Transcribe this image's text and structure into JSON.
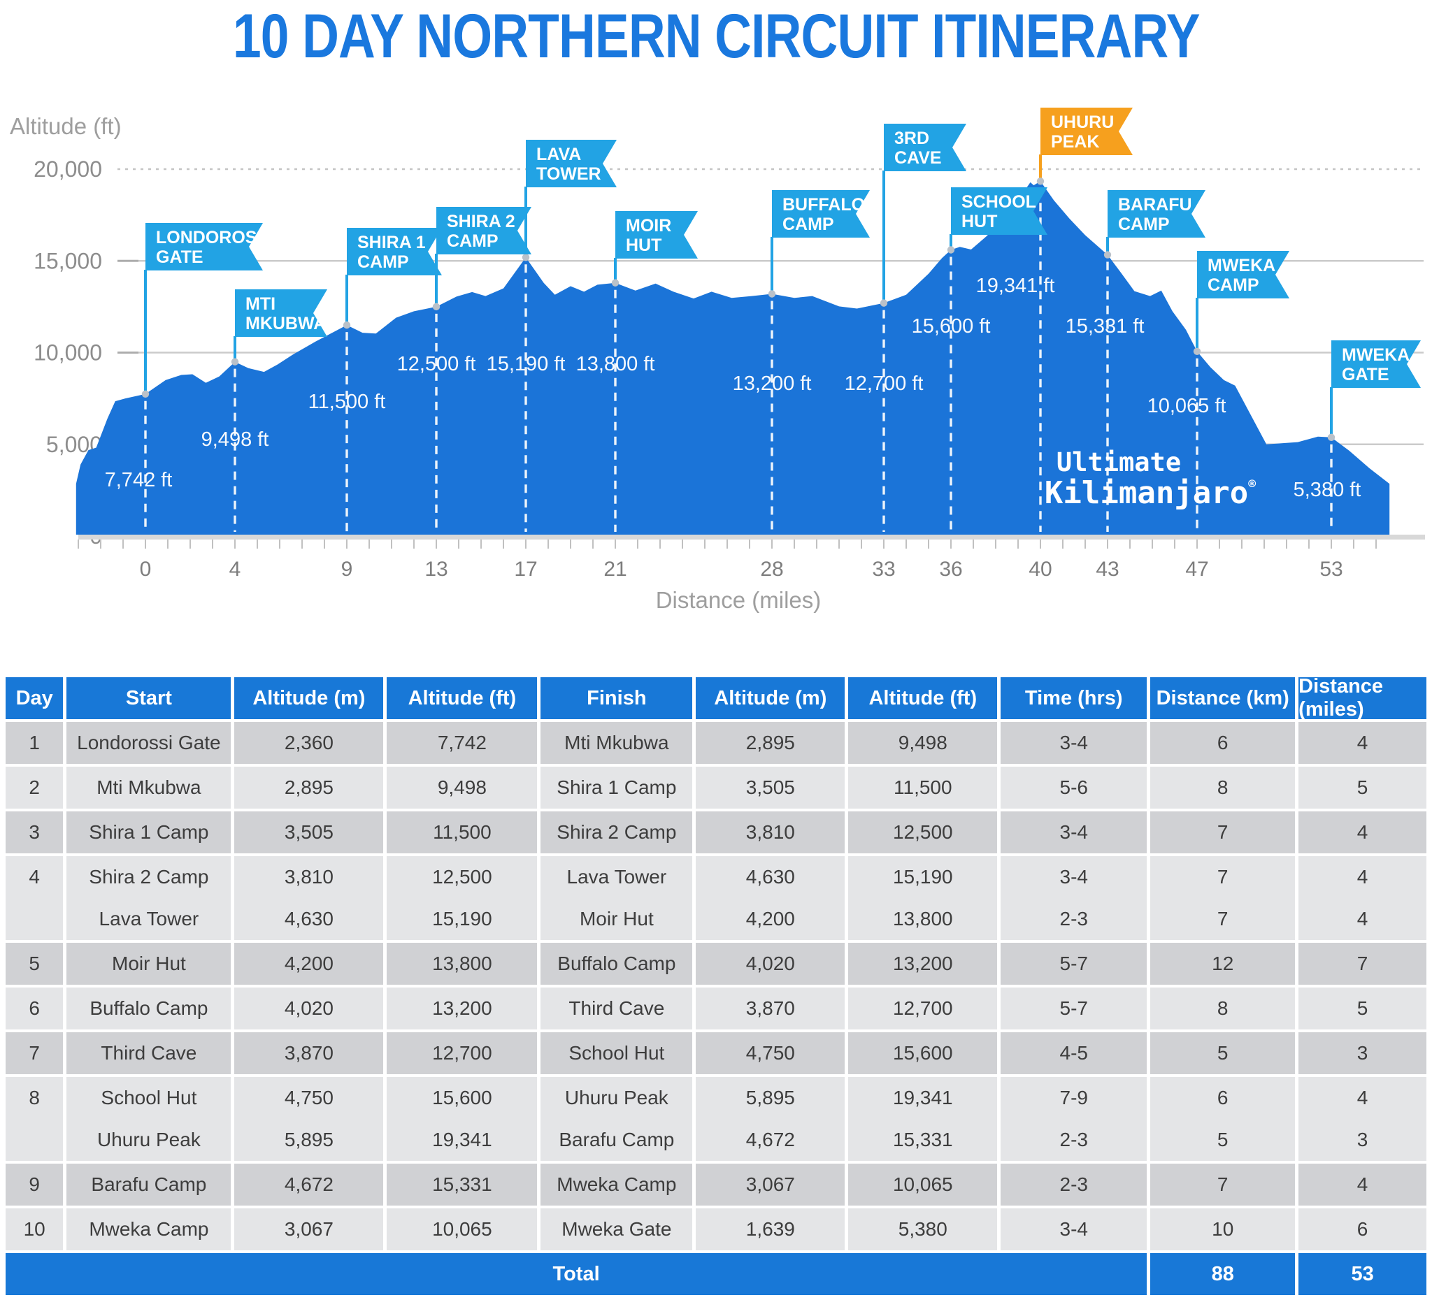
{
  "title": "10 DAY NORTHERN CIRCUIT ITINERARY",
  "colors": {
    "accent_blue": "#1878D7",
    "area_blue": "#1B74D8",
    "flag_blue": "#22A3E4",
    "flag_orange": "#F6A01E",
    "row_dark": "#D0D1D4",
    "row_light": "#E4E5E7",
    "grid_line": "#CBCBCB",
    "axis_text": "#8D8D8D",
    "white": "#FFFFFF"
  },
  "logo": {
    "line1": "Ultimate",
    "line2": "Kilimanjaro",
    "reg": "®"
  },
  "chart_data": {
    "type": "area",
    "title": "10 DAY NORTHERN CIRCUIT ITINERARY",
    "xlabel": "Distance (miles)",
    "ylabel": "Altitude (ft)",
    "xlim": [
      -3.1,
      55.7
    ],
    "ylim": [
      0,
      20000
    ],
    "grid": true,
    "x_ticks": [
      0,
      4,
      9,
      13,
      17,
      21,
      28,
      33,
      36,
      40,
      43,
      47,
      53
    ],
    "y_ticks": [
      0,
      5000,
      10000,
      15000,
      20000
    ],
    "y_tick_labels": [
      "0",
      "5,000",
      "10,000",
      "15,000",
      "20,000"
    ],
    "camps": [
      {
        "name": "Londorossi Gate",
        "flag_lines": [
          "LONDOROSSI",
          "GATE"
        ],
        "mile": 0,
        "ft": 7742,
        "label": "7,742 ft",
        "color": "blue",
        "flag_top": 315,
        "flag_w": 168,
        "label_x": 198,
        "label_y": 692
      },
      {
        "name": "Mti Mkubwa",
        "flag_lines": [
          "MTI",
          "MKUBWA"
        ],
        "mile": 4,
        "ft": 9498,
        "label": "9,498 ft",
        "color": "blue",
        "flag_top": 410,
        "flag_w": 132,
        "label_x": 336,
        "label_y": 634
      },
      {
        "name": "Shira 1 Camp",
        "flag_lines": [
          "SHIRA 1",
          "CAMP"
        ],
        "mile": 9,
        "ft": 11500,
        "label": "11,500 ft",
        "color": "blue",
        "flag_top": 322,
        "flag_w": 136,
        "label_x": 496,
        "label_y": 580
      },
      {
        "name": "Shira 2 Camp",
        "flag_lines": [
          "SHIRA 2",
          "CAMP"
        ],
        "mile": 13,
        "ft": 12500,
        "label": "12,500 ft",
        "color": "blue",
        "flag_top": 292,
        "flag_w": 136,
        "label_x": 624,
        "label_y": 526
      },
      {
        "name": "Lava Tower",
        "flag_lines": [
          "LAVA",
          "TOWER"
        ],
        "mile": 17,
        "ft": 15190,
        "label": "15,190 ft",
        "color": "blue",
        "flag_top": 196,
        "flag_w": 130,
        "label_x": 752,
        "label_y": 526
      },
      {
        "name": "Moir Hut",
        "flag_lines": [
          "MOIR",
          "HUT"
        ],
        "mile": 21,
        "ft": 13800,
        "label": "13,800 ft",
        "color": "blue",
        "flag_top": 298,
        "flag_w": 118,
        "label_x": 880,
        "label_y": 526
      },
      {
        "name": "Buffalo Camp",
        "flag_lines": [
          "BUFFALO",
          "CAMP"
        ],
        "mile": 28,
        "ft": 13200,
        "label": "13,200 ft",
        "color": "blue",
        "flag_top": 268,
        "flag_w": 140,
        "label_x": 1104,
        "label_y": 554
      },
      {
        "name": "3rd Cave",
        "flag_lines": [
          "3RD",
          "CAVE"
        ],
        "mile": 33,
        "ft": 12700,
        "label": "12,700 ft",
        "color": "blue",
        "flag_top": 173,
        "flag_w": 118,
        "label_x": 1264,
        "label_y": 554
      },
      {
        "name": "School Hut",
        "flag_lines": [
          "SCHOOL",
          "HUT"
        ],
        "mile": 36,
        "ft": 15600,
        "label": "15,600 ft",
        "color": "blue",
        "flag_top": 264,
        "flag_w": 138,
        "label_x": 1360,
        "label_y": 472
      },
      {
        "name": "Uhuru Peak",
        "flag_lines": [
          "UHURU",
          "PEAK"
        ],
        "mile": 40,
        "ft": 19341,
        "label": "19,341 ft",
        "color": "orange",
        "flag_top": 150,
        "flag_w": 132,
        "label_x": 1452,
        "label_y": 414
      },
      {
        "name": "Barafu Camp",
        "flag_lines": [
          "BARAFU",
          "CAMP"
        ],
        "mile": 43,
        "ft": 15331,
        "label": "15,331 ft",
        "color": "blue",
        "flag_top": 268,
        "flag_w": 140,
        "label_x": 1580,
        "label_y": 472
      },
      {
        "name": "Mweka Camp",
        "flag_lines": [
          "MWEKA",
          "CAMP"
        ],
        "mile": 47,
        "ft": 10065,
        "label": "10,065 ft",
        "color": "blue",
        "flag_top": 355,
        "flag_w": 132,
        "label_x": 1697,
        "label_y": 586
      },
      {
        "name": "Mweka Gate",
        "flag_lines": [
          "MWEKA",
          "GATE"
        ],
        "mile": 53,
        "ft": 5380,
        "label": "5,380 ft",
        "color": "blue",
        "flag_top": 483,
        "flag_w": 128,
        "label_x": 1898,
        "label_y": 706
      }
    ],
    "profile": [
      [
        -3.1,
        2850
      ],
      [
        -2.9,
        3900
      ],
      [
        -2.55,
        4680
      ],
      [
        -2.2,
        4820
      ],
      [
        -1.7,
        6400
      ],
      [
        -1.35,
        7350
      ],
      [
        -0.9,
        7500
      ],
      [
        0,
        7742
      ],
      [
        0.9,
        8500
      ],
      [
        1.6,
        8780
      ],
      [
        2.1,
        8820
      ],
      [
        2.7,
        8350
      ],
      [
        3.3,
        8700
      ],
      [
        4,
        9498
      ],
      [
        4.6,
        9150
      ],
      [
        5.3,
        8950
      ],
      [
        5.9,
        9350
      ],
      [
        6.6,
        9900
      ],
      [
        7.6,
        10600
      ],
      [
        9,
        11500
      ],
      [
        9.7,
        11080
      ],
      [
        10.3,
        11040
      ],
      [
        11.2,
        11900
      ],
      [
        12,
        12250
      ],
      [
        13,
        12500
      ],
      [
        13.9,
        13050
      ],
      [
        14.6,
        13300
      ],
      [
        15.2,
        13080
      ],
      [
        16,
        13500
      ],
      [
        17,
        15190
      ],
      [
        17.8,
        13800
      ],
      [
        18.3,
        13150
      ],
      [
        19,
        13620
      ],
      [
        19.6,
        13320
      ],
      [
        20.2,
        13700
      ],
      [
        21,
        13800
      ],
      [
        21.9,
        13380
      ],
      [
        22.8,
        13760
      ],
      [
        23.6,
        13320
      ],
      [
        24.5,
        12950
      ],
      [
        25.3,
        13320
      ],
      [
        26.2,
        12980
      ],
      [
        27.1,
        13080
      ],
      [
        28,
        13200
      ],
      [
        29,
        12980
      ],
      [
        29.8,
        13080
      ],
      [
        31,
        12520
      ],
      [
        31.8,
        12400
      ],
      [
        33,
        12700
      ],
      [
        34,
        13150
      ],
      [
        35,
        14300
      ],
      [
        35.6,
        15150
      ],
      [
        36,
        15600
      ],
      [
        36.4,
        15760
      ],
      [
        36.9,
        15620
      ],
      [
        37.6,
        16350
      ],
      [
        38.6,
        17650
      ],
      [
        39.3,
        18850
      ],
      [
        39.55,
        19280
      ],
      [
        39.7,
        19120
      ],
      [
        40,
        19341
      ],
      [
        40.6,
        18300
      ],
      [
        41.3,
        17300
      ],
      [
        42,
        16400
      ],
      [
        43,
        15331
      ],
      [
        43.6,
        14350
      ],
      [
        44.2,
        13350
      ],
      [
        44.9,
        13080
      ],
      [
        45.4,
        13380
      ],
      [
        45.9,
        12250
      ],
      [
        46.5,
        11250
      ],
      [
        47,
        10065
      ],
      [
        47.6,
        9200
      ],
      [
        48.2,
        8500
      ],
      [
        48.7,
        8200
      ],
      [
        49.4,
        6600
      ],
      [
        50.1,
        5000
      ],
      [
        51.5,
        5120
      ],
      [
        52.4,
        5420
      ],
      [
        53,
        5380
      ],
      [
        53.8,
        4650
      ],
      [
        54.7,
        3700
      ],
      [
        55.6,
        2850
      ]
    ]
  },
  "table": {
    "headers": [
      "Day",
      "Start",
      "Altitude (m)",
      "Altitude (ft)",
      "Finish",
      "Altitude (m)",
      "Altitude (ft)",
      "Time (hrs)",
      "Distance (km)",
      "Distance (miles)"
    ],
    "days": [
      {
        "day": "1",
        "rows": [
          [
            "Londorossi Gate",
            "2,360",
            "7,742",
            "Mti Mkubwa",
            "2,895",
            "9,498",
            "3-4",
            "6",
            "4"
          ]
        ]
      },
      {
        "day": "2",
        "rows": [
          [
            "Mti Mkubwa",
            "2,895",
            "9,498",
            "Shira 1 Camp",
            "3,505",
            "11,500",
            "5-6",
            "8",
            "5"
          ]
        ]
      },
      {
        "day": "3",
        "rows": [
          [
            "Shira 1 Camp",
            "3,505",
            "11,500",
            "Shira 2 Camp",
            "3,810",
            "12,500",
            "3-4",
            "7",
            "4"
          ]
        ]
      },
      {
        "day": "4",
        "rows": [
          [
            "Shira 2 Camp",
            "3,810",
            "12,500",
            "Lava Tower",
            "4,630",
            "15,190",
            "3-4",
            "7",
            "4"
          ],
          [
            "Lava Tower",
            "4,630",
            "15,190",
            "Moir Hut",
            "4,200",
            "13,800",
            "2-3",
            "7",
            "4"
          ]
        ]
      },
      {
        "day": "5",
        "rows": [
          [
            "Moir Hut",
            "4,200",
            "13,800",
            "Buffalo Camp",
            "4,020",
            "13,200",
            "5-7",
            "12",
            "7"
          ]
        ]
      },
      {
        "day": "6",
        "rows": [
          [
            "Buffalo Camp",
            "4,020",
            "13,200",
            "Third Cave",
            "3,870",
            "12,700",
            "5-7",
            "8",
            "5"
          ]
        ]
      },
      {
        "day": "7",
        "rows": [
          [
            "Third Cave",
            "3,870",
            "12,700",
            "School Hut",
            "4,750",
            "15,600",
            "4-5",
            "5",
            "3"
          ]
        ]
      },
      {
        "day": "8",
        "rows": [
          [
            "School Hut",
            "4,750",
            "15,600",
            "Uhuru Peak",
            "5,895",
            "19,341",
            "7-9",
            "6",
            "4"
          ],
          [
            "Uhuru Peak",
            "5,895",
            "19,341",
            "Barafu Camp",
            "4,672",
            "15,331",
            "2-3",
            "5",
            "3"
          ]
        ]
      },
      {
        "day": "9",
        "rows": [
          [
            "Barafu Camp",
            "4,672",
            "15,331",
            "Mweka Camp",
            "3,067",
            "10,065",
            "2-3",
            "7",
            "4"
          ]
        ]
      },
      {
        "day": "10",
        "rows": [
          [
            "Mweka Camp",
            "3,067",
            "10,065",
            "Mweka Gate",
            "1,639",
            "5,380",
            "3-4",
            "10",
            "6"
          ]
        ]
      }
    ],
    "total": {
      "label": "Total",
      "distance_km": "88",
      "distance_miles": "53"
    }
  }
}
